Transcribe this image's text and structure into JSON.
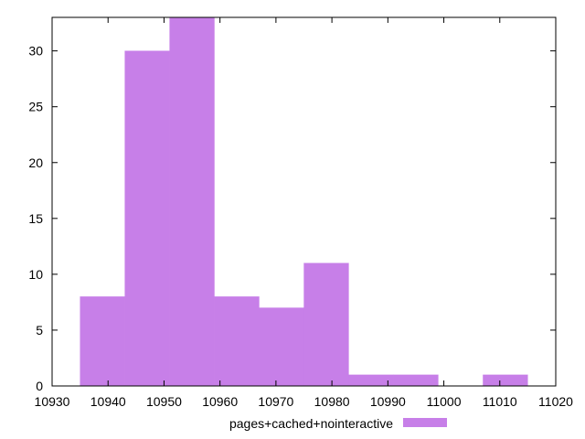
{
  "chart_data": {
    "type": "bar",
    "title": "",
    "xlabel": "",
    "ylabel": "",
    "xlim": [
      10930,
      11020
    ],
    "ylim": [
      0,
      33
    ],
    "xticks": [
      10930,
      10940,
      10950,
      10960,
      10970,
      10980,
      10990,
      11000,
      11010,
      11020
    ],
    "yticks": [
      0,
      5,
      10,
      15,
      20,
      25,
      30
    ],
    "grid": false,
    "legend_position": "bottom-center",
    "series": [
      {
        "name": "pages+cached+nointeractive",
        "color": "#c77fe8",
        "bins": [
          {
            "x0": 10935,
            "x1": 10943,
            "value": 8
          },
          {
            "x0": 10943,
            "x1": 10951,
            "value": 30
          },
          {
            "x0": 10951,
            "x1": 10959,
            "value": 33
          },
          {
            "x0": 10959,
            "x1": 10967,
            "value": 8
          },
          {
            "x0": 10967,
            "x1": 10975,
            "value": 7
          },
          {
            "x0": 10975,
            "x1": 10983,
            "value": 11
          },
          {
            "x0": 10983,
            "x1": 10991,
            "value": 1
          },
          {
            "x0": 10991,
            "x1": 10999,
            "value": 1
          },
          {
            "x0": 10999,
            "x1": 11007,
            "value": 0
          },
          {
            "x0": 11007,
            "x1": 11015,
            "value": 1
          }
        ]
      }
    ]
  }
}
